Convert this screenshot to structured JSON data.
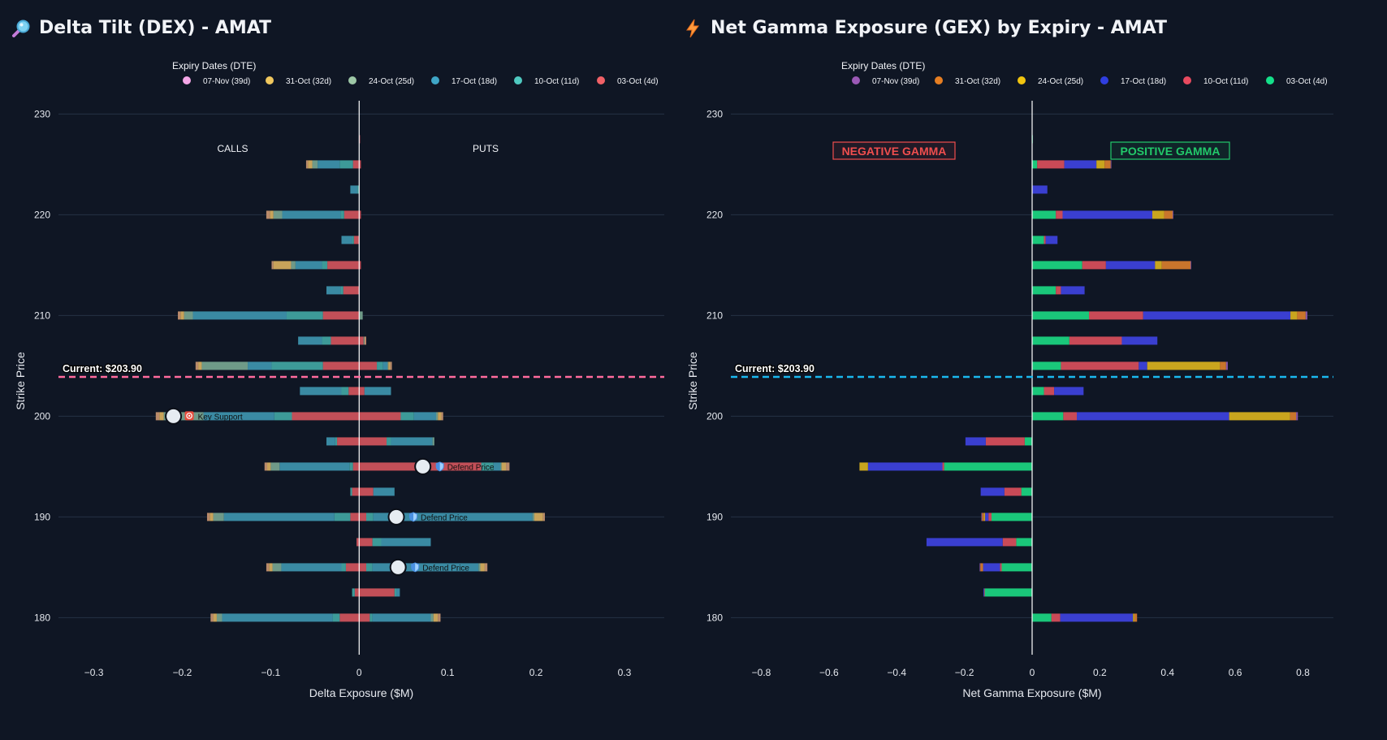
{
  "chart_data": [
    {
      "type": "bar",
      "orientation": "horizontal",
      "stacked": true,
      "title": "Delta Tilt (DEX) - AMAT",
      "title_icon": "magnifier-icon",
      "legend_title": "Expiry Dates (DTE)",
      "xlabel": "Delta Exposure ($M)",
      "ylabel": "Strike Price",
      "xlim": [
        -0.34,
        0.345
      ],
      "ylim": [
        176,
        231
      ],
      "xticks": [
        -0.3,
        -0.2,
        -0.1,
        0,
        0.1,
        0.2,
        0.3
      ],
      "xtick_labels": [
        "−0.3",
        "−0.2",
        "−0.1",
        "0",
        "0.1",
        "0.2",
        "0.3"
      ],
      "yticks": [
        180,
        190,
        200,
        210,
        220,
        230
      ],
      "current_price": 203.9,
      "current_label": "Current: $203.90",
      "current_line_color": "#ff6b9d",
      "side_labels": {
        "left": "CALLS",
        "right": "PUTS"
      },
      "series": [
        {
          "name": "07-Nov (39d)",
          "color": "#f4a6e6",
          "bar_color": "#b98a6a"
        },
        {
          "name": "31-Oct (32d)",
          "color": "#f0c75e",
          "bar_color": "#c8a35a"
        },
        {
          "name": "24-Oct (25d)",
          "color": "#9dc7a6",
          "bar_color": "#6f9a88"
        },
        {
          "name": "17-Oct (18d)",
          "color": "#3fa6c7",
          "bar_color": "#3a8aa3"
        },
        {
          "name": "10-Oct (11d)",
          "color": "#4fc9c0",
          "bar_color": "#3d9a98"
        },
        {
          "name": "03-Oct (4d)",
          "color": "#f16167",
          "bar_color": "#c24f58"
        }
      ],
      "calls": [
        {
          "strike": 225,
          "values": [
            -0.002,
            -0.005,
            -0.006,
            -0.025,
            -0.015,
            -0.007
          ]
        },
        {
          "strike": 222.5,
          "values": [
            0,
            0,
            0,
            -0.008,
            -0.002,
            0
          ]
        },
        {
          "strike": 220,
          "values": [
            -0.004,
            -0.004,
            -0.01,
            -0.066,
            -0.004,
            -0.017
          ]
        },
        {
          "strike": 217.5,
          "values": [
            0,
            0,
            0,
            -0.012,
            -0.002,
            -0.006
          ]
        },
        {
          "strike": 215,
          "values": [
            -0.002,
            -0.02,
            -0.005,
            -0.03,
            -0.006,
            -0.036
          ]
        },
        {
          "strike": 212.5,
          "values": [
            0,
            0,
            0,
            -0.016,
            -0.003,
            -0.018
          ]
        },
        {
          "strike": 210,
          "values": [
            -0.003,
            -0.004,
            -0.01,
            -0.106,
            -0.041,
            -0.041
          ]
        },
        {
          "strike": 207.5,
          "values": [
            0,
            0,
            0,
            -0.027,
            -0.01,
            -0.032
          ]
        },
        {
          "strike": 205,
          "values": [
            -0.003,
            -0.004,
            -0.052,
            -0.027,
            -0.058,
            -0.041
          ]
        },
        {
          "strike": 202.5,
          "values": [
            0,
            0,
            0,
            -0.047,
            -0.008,
            -0.012
          ]
        },
        {
          "strike": 200,
          "values": [
            -0.004,
            -0.005,
            -0.045,
            -0.08,
            -0.02,
            -0.076
          ]
        },
        {
          "strike": 197.5,
          "values": [
            0,
            0,
            0,
            -0.01,
            -0.002,
            -0.025
          ]
        },
        {
          "strike": 195,
          "values": [
            -0.003,
            -0.004,
            -0.01,
            -0.079,
            -0.004,
            -0.007
          ]
        },
        {
          "strike": 192.5,
          "values": [
            0,
            0,
            0,
            0,
            -0.002,
            -0.008
          ]
        },
        {
          "strike": 190,
          "values": [
            -0.003,
            -0.004,
            -0.012,
            -0.125,
            -0.018,
            -0.01
          ]
        },
        {
          "strike": 187.5,
          "values": [
            0,
            0,
            0,
            0,
            0,
            -0.003
          ]
        },
        {
          "strike": 185,
          "values": [
            -0.003,
            -0.004,
            -0.01,
            -0.068,
            -0.005,
            -0.015
          ]
        },
        {
          "strike": 182.5,
          "values": [
            0,
            0,
            0,
            0,
            -0.003,
            -0.005
          ]
        },
        {
          "strike": 180,
          "values": [
            -0.003,
            -0.004,
            -0.006,
            -0.125,
            -0.008,
            -0.022
          ]
        }
      ],
      "puts": [
        {
          "strike": 227.5,
          "values": [
            0,
            0,
            0,
            0,
            0,
            0.001
          ]
        },
        {
          "strike": 225,
          "values": [
            0,
            0,
            0,
            0,
            0,
            0.002
          ]
        },
        {
          "strike": 220,
          "values": [
            0,
            0,
            0,
            0,
            0,
            0.002
          ]
        },
        {
          "strike": 215,
          "values": [
            0,
            0,
            0,
            0,
            0,
            0.002
          ]
        },
        {
          "strike": 210,
          "values": [
            0,
            0,
            0.004,
            0,
            0,
            0
          ]
        },
        {
          "strike": 207.5,
          "values": [
            0.002,
            0,
            0.001,
            0,
            0,
            0.005
          ]
        },
        {
          "strike": 205,
          "values": [
            0.002,
            0.002,
            0.001,
            0.005,
            0.007,
            0.02
          ]
        },
        {
          "strike": 202.5,
          "values": [
            0,
            0,
            0,
            0.03,
            0,
            0.006
          ]
        },
        {
          "strike": 200,
          "values": [
            0.002,
            0.004,
            0.002,
            0.025,
            0.015,
            0.047
          ]
        },
        {
          "strike": 197.5,
          "values": [
            0,
            0,
            0.002,
            0.047,
            0.005,
            0.031
          ]
        },
        {
          "strike": 195,
          "values": [
            0.004,
            0.005,
            0.001,
            0.008,
            0.014,
            0.138
          ]
        },
        {
          "strike": 192.5,
          "values": [
            0,
            0,
            0,
            0.024,
            0,
            0.016
          ]
        },
        {
          "strike": 190,
          "values": [
            0.002,
            0.01,
            0.002,
            0.18,
            0.008,
            0.008
          ]
        },
        {
          "strike": 187.5,
          "values": [
            0,
            0,
            0,
            0.056,
            0.01,
            0.015
          ]
        },
        {
          "strike": 185,
          "values": [
            0.003,
            0.005,
            0.002,
            0.12,
            0.007,
            0.008
          ]
        },
        {
          "strike": 182.5,
          "values": [
            0,
            0,
            0,
            0.004,
            0.002,
            0.04
          ]
        },
        {
          "strike": 180,
          "values": [
            0.003,
            0.005,
            0.003,
            0.066,
            0.003,
            0.012
          ]
        }
      ],
      "annotations": [
        {
          "strike": 200,
          "x": -0.21,
          "label": "Key Support",
          "icon": "target-icon"
        },
        {
          "strike": 195,
          "x": 0.072,
          "label": "Defend Price",
          "icon": "shield-icon"
        },
        {
          "strike": 190,
          "x": 0.042,
          "label": "Defend Price",
          "icon": "shield-icon"
        },
        {
          "strike": 185,
          "x": 0.044,
          "label": "Defend Price",
          "icon": "shield-icon"
        }
      ]
    },
    {
      "type": "bar",
      "orientation": "horizontal",
      "stacked": true,
      "title": "Net Gamma Exposure (GEX) by Expiry - AMAT",
      "title_icon": "lightning-icon",
      "legend_title": "Expiry Dates (DTE)",
      "xlabel": "Net Gamma Exposure ($M)",
      "ylabel": "Strike Price",
      "xlim": [
        -0.89,
        0.89
      ],
      "ylim": [
        176,
        231
      ],
      "xticks": [
        -0.8,
        -0.6,
        -0.4,
        -0.2,
        0,
        0.2,
        0.4,
        0.6,
        0.8
      ],
      "xtick_labels": [
        "−0.8",
        "−0.6",
        "−0.4",
        "−0.2",
        "0",
        "0.2",
        "0.4",
        "0.6",
        "0.8"
      ],
      "yticks": [
        180,
        190,
        200,
        210,
        220,
        230
      ],
      "current_price": 203.9,
      "current_label": "Current: $203.90",
      "current_line_color": "#1ab8ee",
      "side_labels": {
        "left": "NEGATIVE GAMMA",
        "right": "POSITIVE GAMMA"
      },
      "side_label_colors": {
        "left": "#f04e4e",
        "right": "#22c96a"
      },
      "series": [
        {
          "name": "07-Nov (39d)",
          "color": "#9b59b6"
        },
        {
          "name": "31-Oct (32d)",
          "color": "#e67e22"
        },
        {
          "name": "24-Oct (25d)",
          "color": "#f1c40f"
        },
        {
          "name": "17-Oct (18d)",
          "color": "#2f3ee0"
        },
        {
          "name": "10-Oct (11d)",
          "color": "#e84a5f"
        },
        {
          "name": "03-Oct (4d)",
          "color": "#14e08a"
        }
      ],
      "bar_colors": [
        "#8a56a8",
        "#c9752c",
        "#c9a51e",
        "#3a3fd0",
        "#c94a57",
        "#1ac77a"
      ],
      "bars": [
        {
          "strike": 227.5,
          "values": [
            0,
            0,
            0,
            0,
            0,
            0.002
          ]
        },
        {
          "strike": 225,
          "values": [
            0.002,
            0.018,
            0.024,
            0.095,
            0.08,
            0.015
          ]
        },
        {
          "strike": 222.5,
          "values": [
            0,
            0,
            0,
            0.045,
            0,
            0
          ]
        },
        {
          "strike": 220,
          "values": [
            0.002,
            0.025,
            0.035,
            0.265,
            0.02,
            0.07
          ]
        },
        {
          "strike": 217.5,
          "values": [
            0,
            0,
            0,
            0.035,
            0.005,
            0.035
          ]
        },
        {
          "strike": 215,
          "values": [
            0.002,
            0.085,
            0.02,
            0.145,
            0.07,
            0.148
          ]
        },
        {
          "strike": 212.5,
          "values": [
            0,
            0,
            0,
            0.07,
            0.015,
            0.07
          ]
        },
        {
          "strike": 210,
          "values": [
            0.005,
            0.025,
            0.02,
            0.435,
            0.16,
            0.168
          ]
        },
        {
          "strike": 207.5,
          "values": [
            0,
            0,
            0,
            0.105,
            0.155,
            0.11
          ]
        },
        {
          "strike": 205,
          "values": [
            0.005,
            0.018,
            0.215,
            0.025,
            0.23,
            0.085
          ]
        },
        {
          "strike": 202.5,
          "values": [
            0,
            0,
            0,
            0.087,
            0.03,
            0.035
          ]
        },
        {
          "strike": 200,
          "values": [
            0.005,
            0.018,
            0.18,
            0.45,
            0.04,
            0.092
          ]
        },
        {
          "strike": 197.5,
          "values": [
            0,
            0,
            0,
            -0.06,
            -0.115,
            -0.022
          ]
        },
        {
          "strike": 195,
          "values": [
            0,
            0,
            -0.025,
            -0.22,
            -0.005,
            -0.26
          ]
        },
        {
          "strike": 192.5,
          "values": [
            0,
            0,
            0,
            -0.07,
            -0.05,
            -0.032
          ]
        },
        {
          "strike": 190,
          "values": [
            -0.002,
            -0.006,
            -0.003,
            -0.01,
            -0.009,
            -0.12
          ]
        },
        {
          "strike": 187.5,
          "values": [
            0,
            0,
            0,
            -0.225,
            -0.04,
            -0.047
          ]
        },
        {
          "strike": 185,
          "values": [
            -0.002,
            -0.008,
            0,
            -0.05,
            -0.005,
            -0.09
          ]
        },
        {
          "strike": 182.5,
          "values": [
            0,
            0,
            0,
            -0.002,
            -0.002,
            -0.14
          ]
        },
        {
          "strike": 180,
          "values": [
            0,
            0.008,
            0.004,
            0.215,
            0.026,
            0.057
          ]
        }
      ]
    }
  ]
}
